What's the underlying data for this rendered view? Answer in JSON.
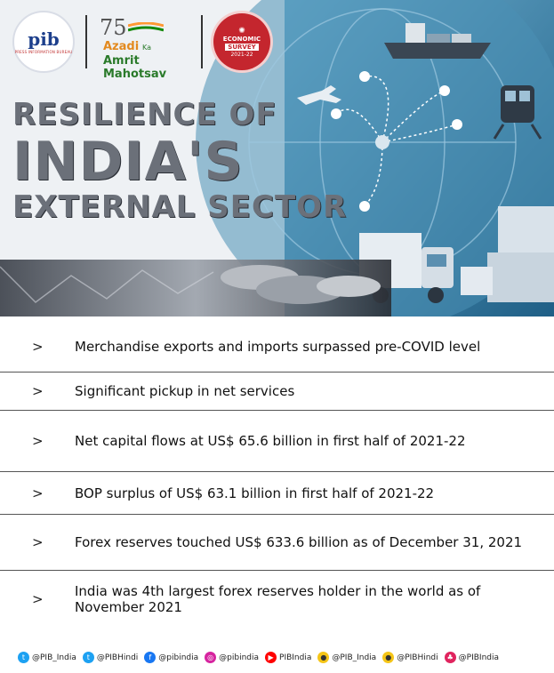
{
  "header": {
    "pib_logo_text": "pib",
    "pib_logo_subtext": "PRESS INFORMATION BUREAU",
    "amrit_number": "75",
    "amrit_line1": "Azadi",
    "amrit_line1b": "Ka",
    "amrit_line2": "Amrit Mahotsav",
    "survey_line1": "ECONOMIC",
    "survey_line2": "SURVEY",
    "survey_line3": "2021-22"
  },
  "title": {
    "line1": "RESILIENCE OF",
    "line2": "INDIA'S",
    "line3": "EXTERNAL SECTOR"
  },
  "colors": {
    "hero_blue": "#3a7da6",
    "title_gray": "#6b7079",
    "divider": "#555555",
    "survey_red": "#c4262e"
  },
  "points": [
    {
      "arrow": ">",
      "text": "Merchandise exports and imports surpassed pre-COVID level"
    },
    {
      "arrow": ">",
      "text": "Significant pickup in net services"
    },
    {
      "arrow": ">",
      "text": "Net capital flows at US$ 65.6 billion in first half of 2021-22"
    },
    {
      "arrow": ">",
      "text": "BOP surplus of US$ 63.1 billion in first half of 2021-22"
    },
    {
      "arrow": ">",
      "text": "Forex reserves touched US$ 633.6 billion as of December 31, 2021"
    },
    {
      "arrow": ">",
      "text": "India was 4th largest forex reserves holder in the world as of November 2021"
    }
  ],
  "social": [
    {
      "icon": "twitter-icon",
      "handle": "@PIB_India",
      "color": "#1da1f2"
    },
    {
      "icon": "twitter-icon",
      "handle": "@PIBHindi",
      "color": "#1da1f2"
    },
    {
      "icon": "facebook-icon",
      "handle": "@pibindia",
      "color": "#1877f2"
    },
    {
      "icon": "instagram-icon",
      "handle": "@pibindia",
      "color": "#d6249f"
    },
    {
      "icon": "youtube-icon",
      "handle": "PIBIndia",
      "color": "#ff0000"
    },
    {
      "icon": "koo-icon",
      "handle": "@PIB_India",
      "color": "#f5c518"
    },
    {
      "icon": "koo-icon",
      "handle": "@PIBHindi",
      "color": "#f5c518"
    },
    {
      "icon": "sharechat-icon",
      "handle": "@PIBIndia",
      "color": "#e0245e"
    }
  ]
}
